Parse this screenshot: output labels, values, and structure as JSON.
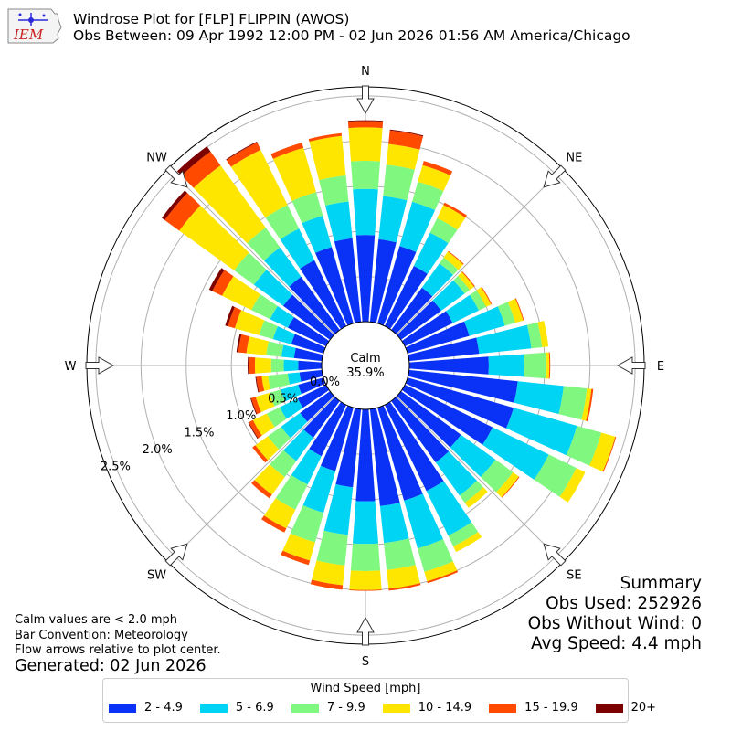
{
  "header": {
    "title": "Windrose Plot for [FLP] FLIPPIN (AWOS)",
    "subtitle": "Obs Between: 09 Apr 1992 12:00 PM - 02 Jun 2026 01:56 AM America/Chicago",
    "logo_text": "IEM"
  },
  "notes": {
    "calm_note": "Calm values are < 2.0 mph",
    "bar_convention": "Bar Convention: Meteorology",
    "flow_arrows": "Flow arrows relative to plot center.",
    "generated": "Generated: 02 Jun 2026"
  },
  "summary": {
    "title": "Summary",
    "obs_used": "Obs Used: 252926",
    "obs_without_wind": "Obs Without Wind: 0",
    "avg_speed": "Avg Speed: 4.4 mph"
  },
  "chart_data": {
    "type": "windrose",
    "title": "Windrose Plot for [FLP] FLIPPIN (AWOS)",
    "calm": {
      "label": "Calm",
      "value": "35.9%"
    },
    "compass_labels": [
      "N",
      "NE",
      "E",
      "SE",
      "S",
      "SW",
      "W",
      "NW"
    ],
    "radial_ticks": [
      {
        "value": 0.0,
        "label": "0.0%"
      },
      {
        "value": 0.5,
        "label": "0.5%"
      },
      {
        "value": 1.0,
        "label": "1.0%"
      },
      {
        "value": 1.5,
        "label": "1.5%"
      },
      {
        "value": 2.0,
        "label": "2.0%"
      },
      {
        "value": 2.5,
        "label": "2.5%"
      }
    ],
    "rmax_percent": 2.6,
    "legend_title": "Wind Speed [mph]",
    "bins": [
      {
        "label": "2 - 4.9",
        "color": "#0a32f7"
      },
      {
        "label": "5 - 6.9",
        "color": "#00d4f5"
      },
      {
        "label": "7 - 9.9",
        "color": "#80f77e"
      },
      {
        "label": "10 - 14.9",
        "color": "#ffe600"
      },
      {
        "label": "15 - 19.9",
        "color": "#ff4a00"
      },
      {
        "label": "20+",
        "color": "#7d0000"
      }
    ],
    "directions_deg": [
      0,
      10,
      20,
      30,
      40,
      50,
      60,
      70,
      80,
      90,
      100,
      110,
      120,
      130,
      140,
      150,
      160,
      170,
      180,
      190,
      200,
      210,
      220,
      230,
      240,
      250,
      260,
      270,
      280,
      290,
      300,
      310,
      320,
      330,
      340,
      350
    ],
    "cumulative_percent": [
      [
        0.96,
        1.47,
        1.78,
        2.15,
        2.22,
        2.23
      ],
      [
        0.92,
        1.4,
        1.75,
        1.98,
        2.13,
        2.14
      ],
      [
        0.89,
        1.4,
        1.63,
        1.82,
        1.87,
        1.87
      ],
      [
        0.74,
        1.15,
        1.33,
        1.49,
        1.52,
        1.52
      ],
      [
        0.58,
        0.91,
        0.99,
        1.07,
        1.08,
        1.08
      ],
      [
        0.55,
        0.87,
        0.94,
        1.0,
        1.01,
        1.01
      ],
      [
        0.59,
        0.91,
        1.0,
        1.06,
        1.07,
        1.07
      ],
      [
        0.71,
        1.12,
        1.24,
        1.33,
        1.34,
        1.34
      ],
      [
        0.78,
        1.36,
        1.48,
        1.55,
        1.55,
        1.55
      ],
      [
        0.88,
        1.27,
        1.52,
        1.55,
        1.56,
        1.56
      ],
      [
        1.21,
        1.72,
        1.98,
        2.03,
        2.05,
        2.05
      ],
      [
        1.22,
        1.95,
        2.23,
        2.39,
        2.4,
        2.4
      ],
      [
        1.08,
        1.77,
        2.11,
        2.22,
        2.22,
        2.22
      ],
      [
        0.82,
        1.29,
        1.53,
        1.61,
        1.62,
        1.62
      ],
      [
        0.84,
        1.29,
        1.39,
        1.46,
        1.46,
        1.46
      ],
      [
        1.06,
        1.61,
        1.74,
        1.81,
        1.81,
        1.81
      ],
      [
        1.07,
        1.62,
        1.89,
        2.0,
        2.02,
        2.02
      ],
      [
        1.08,
        1.49,
        1.79,
        2.0,
        2.02,
        2.02
      ],
      [
        1.02,
        1.49,
        1.79,
        2.0,
        2.01,
        2.01
      ],
      [
        0.87,
        1.4,
        1.74,
        1.96,
        2.01,
        2.01
      ],
      [
        0.73,
        1.21,
        1.55,
        1.76,
        1.81,
        1.81
      ],
      [
        0.63,
        0.98,
        1.29,
        1.52,
        1.57,
        1.57
      ],
      [
        0.5,
        0.82,
        1.04,
        1.28,
        1.33,
        1.33
      ],
      [
        0.41,
        0.67,
        0.85,
        1.02,
        1.06,
        1.06
      ],
      [
        0.35,
        0.57,
        0.73,
        0.9,
        0.95,
        0.96
      ],
      [
        0.29,
        0.49,
        0.62,
        0.78,
        0.83,
        0.84
      ],
      [
        0.25,
        0.38,
        0.6,
        0.67,
        0.73,
        0.74
      ],
      [
        0.26,
        0.42,
        0.56,
        0.74,
        0.8,
        0.82
      ],
      [
        0.31,
        0.45,
        0.62,
        0.84,
        0.93,
        0.95
      ],
      [
        0.37,
        0.58,
        0.74,
        1.02,
        1.1,
        1.13
      ],
      [
        0.47,
        0.69,
        0.92,
        1.28,
        1.4,
        1.44
      ],
      [
        0.64,
        1.04,
        1.31,
        2.06,
        2.26,
        2.3
      ],
      [
        0.73,
        1.13,
        1.4,
        2.25,
        2.44,
        2.51
      ],
      [
        0.81,
        1.2,
        1.49,
        2.17,
        2.26,
        2.27
      ],
      [
        0.88,
        1.24,
        1.51,
        2.02,
        2.08,
        2.08
      ],
      [
        0.93,
        1.34,
        1.63,
        2.07,
        2.1,
        2.1
      ]
    ]
  }
}
